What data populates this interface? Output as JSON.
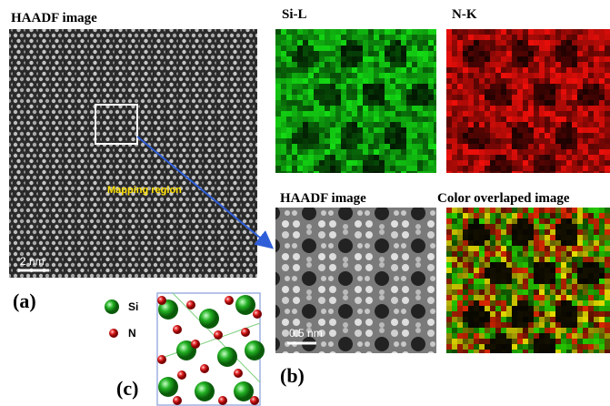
{
  "panel_a": {
    "title": "HAADF image",
    "annotation": "Mapping region",
    "scale_bar": "2 nm",
    "label": "(a)"
  },
  "panel_b": {
    "maps": [
      "Si-L",
      "N-K",
      "HAADF image",
      "Color overlaped image"
    ],
    "scale_bar": "0.5 nm",
    "label": "(b)"
  },
  "panel_c": {
    "legend": [
      "Si",
      "N"
    ],
    "label": "(c)"
  }
}
